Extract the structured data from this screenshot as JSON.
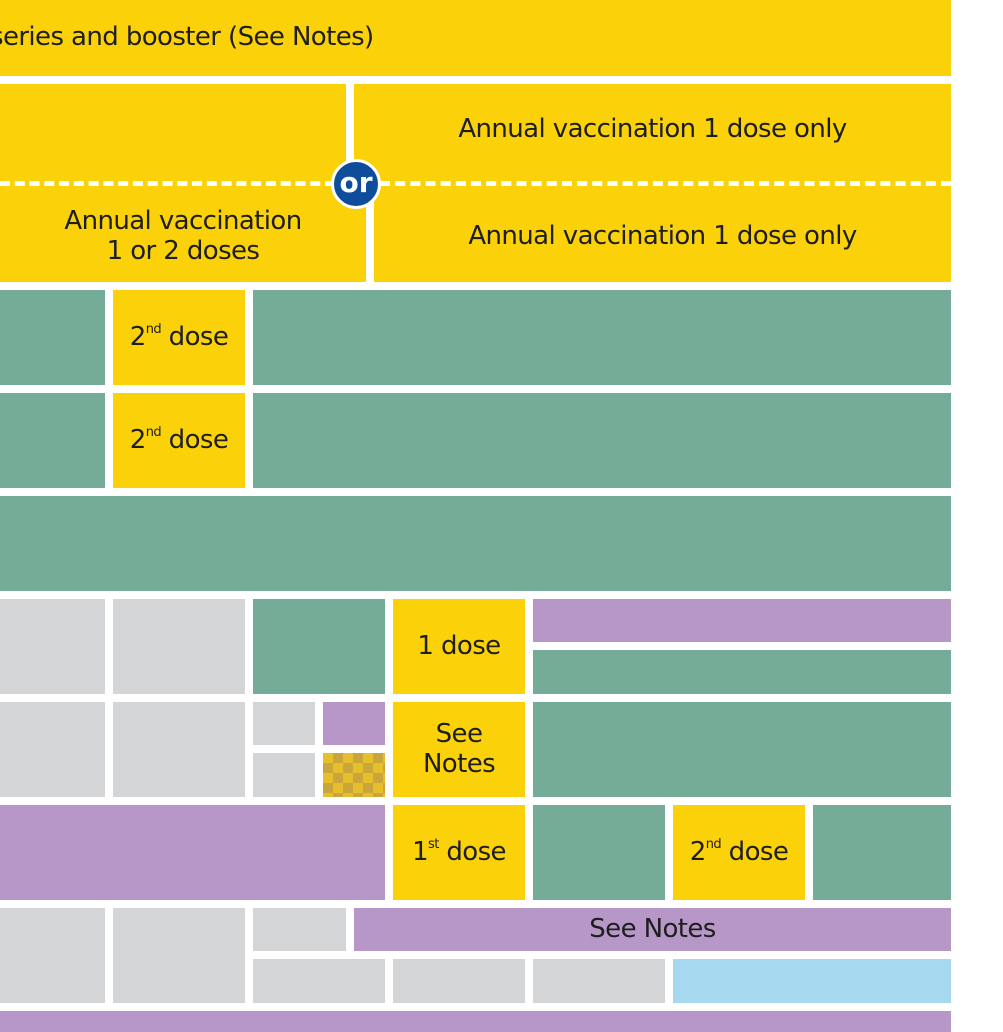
{
  "rows": {
    "top_banner": "series and booster (See Notes)",
    "annual_top_right": "Annual vaccination 1 dose only",
    "annual_bottom_left": "Annual vaccination\n1 or 2 doses",
    "annual_bottom_right": "Annual vaccination 1 dose only",
    "or_badge": "or",
    "dose_number_2": "2",
    "ordinal_nd": "nd",
    "dose_number_1": "1",
    "ordinal_st": "st",
    "dose_word": "dose",
    "one_dose": "1 dose",
    "see_notes_stacked": "See\nNotes",
    "see_notes": "See Notes"
  },
  "colors": {
    "yellow": "#fbd20a",
    "green": "#75ac98",
    "gray": "#d4d5d6",
    "purple": "#b697c8",
    "light_blue": "#a6d8f0",
    "or_badge_blue": "#0e4d9b"
  }
}
